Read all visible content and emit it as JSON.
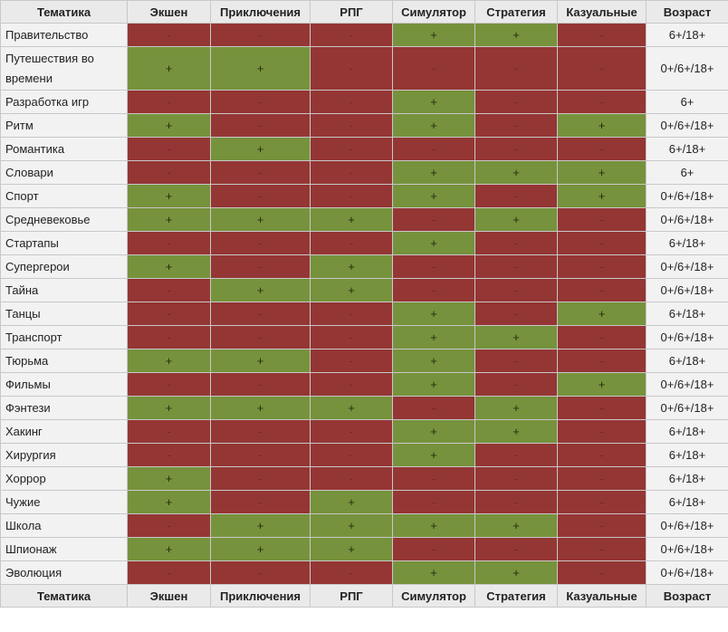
{
  "columns": [
    "Тематика",
    "Экшен",
    "Приключения",
    "РПГ",
    "Симулятор",
    "Стратегия",
    "Казуальные",
    "Возраст"
  ],
  "colors": {
    "yes": "#76923c",
    "no": "#943634",
    "header": "#eaeaea",
    "label": "#f2f2f2"
  },
  "rows": [
    {
      "topic": "Правительство",
      "marks": [
        "-",
        "-",
        "-",
        "+",
        "+",
        "-"
      ],
      "age": "6+/18+"
    },
    {
      "topic": "Путешествия во времени",
      "marks": [
        "+",
        "+",
        "-",
        "-",
        "-",
        "-"
      ],
      "age": "0+/6+/18+"
    },
    {
      "topic": "Разработка игр",
      "marks": [
        "-",
        "-",
        "-",
        "+",
        "-",
        "-"
      ],
      "age": "6+"
    },
    {
      "topic": "Ритм",
      "marks": [
        "+",
        "-",
        "-",
        "+",
        "-",
        "+"
      ],
      "age": "0+/6+/18+"
    },
    {
      "topic": "Романтика",
      "marks": [
        "-",
        "+",
        "-",
        "-",
        "-",
        "-"
      ],
      "age": "6+/18+"
    },
    {
      "topic": "Словари",
      "marks": [
        "-",
        "-",
        "-",
        "+",
        "+",
        "+"
      ],
      "age": "6+"
    },
    {
      "topic": "Спорт",
      "marks": [
        "+",
        "-",
        "-",
        "+",
        "-",
        "+"
      ],
      "age": "0+/6+/18+"
    },
    {
      "topic": "Средневековье",
      "marks": [
        "+",
        "+",
        "+",
        "-",
        "+",
        "-"
      ],
      "age": "0+/6+/18+"
    },
    {
      "topic": "Стартапы",
      "marks": [
        "-",
        "-",
        "-",
        "+",
        "-",
        "-"
      ],
      "age": "6+/18+"
    },
    {
      "topic": "Супергерои",
      "marks": [
        "+",
        "-",
        "+",
        "-",
        "-",
        "-"
      ],
      "age": "0+/6+/18+"
    },
    {
      "topic": "Тайна",
      "marks": [
        "-",
        "+",
        "+",
        "-",
        "-",
        "-"
      ],
      "age": "0+/6+/18+"
    },
    {
      "topic": "Танцы",
      "marks": [
        "-",
        "-",
        "-",
        "+",
        "-",
        "+"
      ],
      "age": "6+/18+"
    },
    {
      "topic": "Транспорт",
      "marks": [
        "-",
        "-",
        "-",
        "+",
        "+",
        "-"
      ],
      "age": "0+/6+/18+"
    },
    {
      "topic": "Тюрьма",
      "marks": [
        "+",
        "+",
        "-",
        "+",
        "-",
        "-"
      ],
      "age": "6+/18+"
    },
    {
      "topic": "Фильмы",
      "marks": [
        "-",
        "-",
        "-",
        "+",
        "-",
        "+"
      ],
      "age": "0+/6+/18+"
    },
    {
      "topic": "Фэнтези",
      "marks": [
        "+",
        "+",
        "+",
        "-",
        "+",
        "-"
      ],
      "age": "0+/6+/18+"
    },
    {
      "topic": "Хакинг",
      "marks": [
        "-",
        "-",
        "-",
        "+",
        "+",
        "-"
      ],
      "age": "6+/18+"
    },
    {
      "topic": "Хирургия",
      "marks": [
        "-",
        "-",
        "-",
        "+",
        "-",
        "-"
      ],
      "age": "6+/18+"
    },
    {
      "topic": "Хоррор",
      "marks": [
        "+",
        "-",
        "-",
        "-",
        "-",
        "-"
      ],
      "age": "6+/18+"
    },
    {
      "topic": "Чужие",
      "marks": [
        "+",
        "-",
        "+",
        "-",
        "-",
        "-"
      ],
      "age": "6+/18+"
    },
    {
      "topic": "Школа",
      "marks": [
        "-",
        "+",
        "+",
        "+",
        "+",
        "-"
      ],
      "age": "0+/6+/18+"
    },
    {
      "topic": "Шпионаж",
      "marks": [
        "+",
        "+",
        "+",
        "-",
        "-",
        "-"
      ],
      "age": "0+/6+/18+"
    },
    {
      "topic": "Эволюция",
      "marks": [
        "-",
        "-",
        "-",
        "+",
        "+",
        "-"
      ],
      "age": "0+/6+/18+"
    }
  ]
}
